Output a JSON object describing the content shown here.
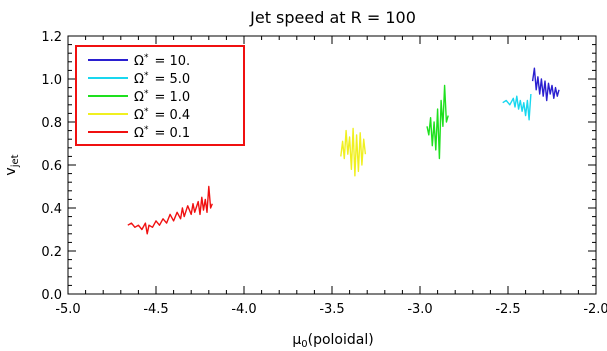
{
  "chart_data": {
    "type": "line",
    "title": "Jet speed at R = 100",
    "xlabel_main": "μ",
    "xlabel_sub": "0",
    "xlabel_tail": "(poloidal)",
    "ylabel_main": "v",
    "ylabel_sub": "jet",
    "xlim": [
      -5.0,
      -2.0
    ],
    "ylim": [
      0.0,
      1.2
    ],
    "x_ticks": [
      "-5.0",
      "-4.5",
      "-4.0",
      "-3.5",
      "-3.0",
      "-2.5",
      "-2.0"
    ],
    "x_tick_values": [
      -5.0,
      -4.5,
      -4.0,
      -3.5,
      -3.0,
      -2.5,
      -2.0
    ],
    "y_ticks": [
      "0.0",
      "0.2",
      "0.4",
      "0.6",
      "0.8",
      "1.0",
      "1.2"
    ],
    "y_tick_values": [
      0.0,
      0.2,
      0.4,
      0.6,
      0.8,
      1.0,
      1.2
    ],
    "grid": false,
    "legend_placement": "top-left",
    "series": [
      {
        "name": "Ω* = 10.",
        "omega_symbol": "Ω",
        "omega_value": "10.",
        "color": "#2a1fd0",
        "points": [
          [
            -2.36,
            0.99
          ],
          [
            -2.35,
            1.05
          ],
          [
            -2.34,
            0.95
          ],
          [
            -2.33,
            1.01
          ],
          [
            -2.32,
            0.93
          ],
          [
            -2.31,
            1.0
          ],
          [
            -2.3,
            0.92
          ],
          [
            -2.29,
            0.99
          ],
          [
            -2.28,
            0.9
          ],
          [
            -2.27,
            0.98
          ],
          [
            -2.26,
            0.93
          ],
          [
            -2.25,
            0.97
          ],
          [
            -2.24,
            0.91
          ],
          [
            -2.23,
            0.96
          ],
          [
            -2.22,
            0.92
          ],
          [
            -2.21,
            0.95
          ]
        ]
      },
      {
        "name": "Ω* = 5.0",
        "omega_symbol": "Ω",
        "omega_value": "5.0",
        "color": "#19d7ef",
        "points": [
          [
            -2.53,
            0.89
          ],
          [
            -2.51,
            0.9
          ],
          [
            -2.49,
            0.88
          ],
          [
            -2.47,
            0.91
          ],
          [
            -2.46,
            0.87
          ],
          [
            -2.45,
            0.92
          ],
          [
            -2.44,
            0.86
          ],
          [
            -2.43,
            0.9
          ],
          [
            -2.42,
            0.85
          ],
          [
            -2.41,
            0.89
          ],
          [
            -2.4,
            0.83
          ],
          [
            -2.39,
            0.9
          ],
          [
            -2.38,
            0.81
          ],
          [
            -2.37,
            0.93
          ]
        ]
      },
      {
        "name": "Ω* = 1.0",
        "omega_symbol": "Ω",
        "omega_value": "1.0",
        "color": "#1ee01e",
        "points": [
          [
            -2.96,
            0.78
          ],
          [
            -2.95,
            0.74
          ],
          [
            -2.94,
            0.82
          ],
          [
            -2.93,
            0.69
          ],
          [
            -2.92,
            0.8
          ],
          [
            -2.91,
            0.67
          ],
          [
            -2.9,
            0.86
          ],
          [
            -2.89,
            0.63
          ],
          [
            -2.88,
            0.9
          ],
          [
            -2.87,
            0.78
          ],
          [
            -2.86,
            0.97
          ],
          [
            -2.85,
            0.8
          ],
          [
            -2.84,
            0.83
          ]
        ]
      },
      {
        "name": "Ω* = 0.4",
        "omega_symbol": "Ω",
        "omega_value": "0.4",
        "color": "#f0f020",
        "points": [
          [
            -3.45,
            0.64
          ],
          [
            -3.44,
            0.71
          ],
          [
            -3.43,
            0.63
          ],
          [
            -3.42,
            0.76
          ],
          [
            -3.41,
            0.65
          ],
          [
            -3.4,
            0.73
          ],
          [
            -3.39,
            0.58
          ],
          [
            -3.38,
            0.77
          ],
          [
            -3.37,
            0.55
          ],
          [
            -3.36,
            0.74
          ],
          [
            -3.35,
            0.57
          ],
          [
            -3.34,
            0.75
          ],
          [
            -3.33,
            0.6
          ],
          [
            -3.32,
            0.72
          ],
          [
            -3.31,
            0.65
          ]
        ]
      },
      {
        "name": "Ω* = 0.1",
        "omega_symbol": "Ω",
        "omega_value": "0.1",
        "color": "#f01010",
        "points": [
          [
            -4.66,
            0.32
          ],
          [
            -4.64,
            0.33
          ],
          [
            -4.62,
            0.31
          ],
          [
            -4.6,
            0.32
          ],
          [
            -4.58,
            0.3
          ],
          [
            -4.56,
            0.33
          ],
          [
            -4.55,
            0.28
          ],
          [
            -4.54,
            0.32
          ],
          [
            -4.52,
            0.31
          ],
          [
            -4.5,
            0.34
          ],
          [
            -4.48,
            0.32
          ],
          [
            -4.46,
            0.35
          ],
          [
            -4.44,
            0.33
          ],
          [
            -4.42,
            0.37
          ],
          [
            -4.4,
            0.34
          ],
          [
            -4.38,
            0.38
          ],
          [
            -4.36,
            0.35
          ],
          [
            -4.35,
            0.4
          ],
          [
            -4.34,
            0.36
          ],
          [
            -4.32,
            0.41
          ],
          [
            -4.3,
            0.37
          ],
          [
            -4.29,
            0.42
          ],
          [
            -4.28,
            0.38
          ],
          [
            -4.26,
            0.43
          ],
          [
            -4.25,
            0.37
          ],
          [
            -4.24,
            0.45
          ],
          [
            -4.23,
            0.39
          ],
          [
            -4.22,
            0.44
          ],
          [
            -4.21,
            0.38
          ],
          [
            -4.2,
            0.5
          ],
          [
            -4.19,
            0.4
          ],
          [
            -4.18,
            0.42
          ]
        ]
      }
    ]
  }
}
